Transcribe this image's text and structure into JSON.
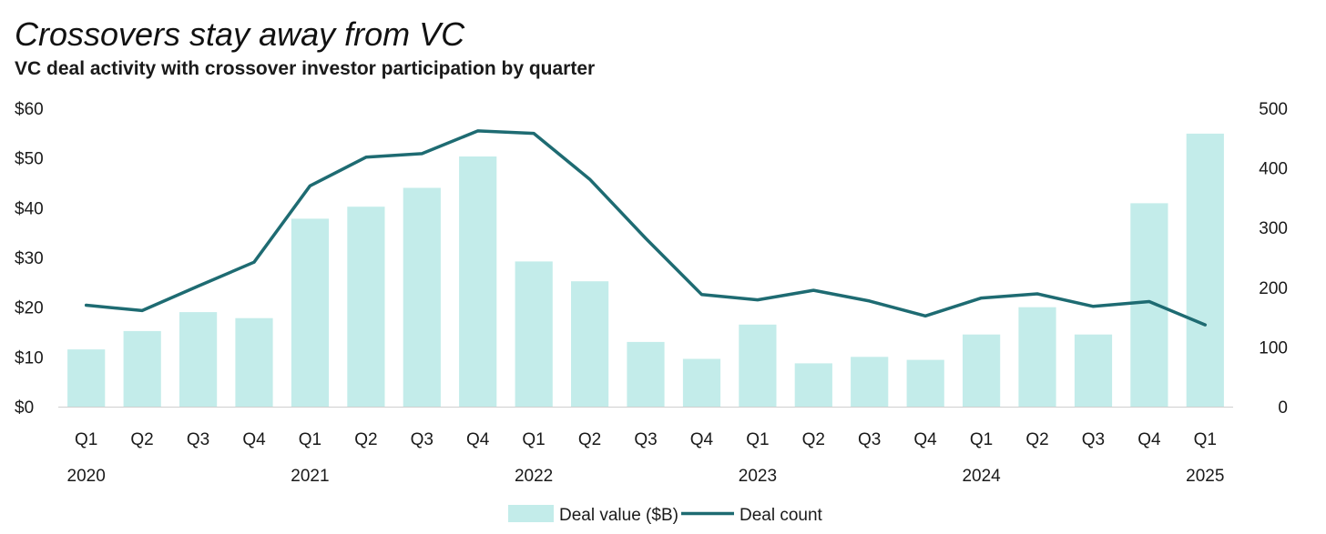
{
  "header": {
    "title": "Crossovers stay away from VC",
    "subtitle": "VC deal activity with crossover investor participation by quarter"
  },
  "colors": {
    "bar": "#c3ecea",
    "line": "#1e6b72",
    "axis": "#cfcfcf",
    "text": "#1a1a1a"
  },
  "chart_data": {
    "type": "bar",
    "title": "Crossovers stay away from VC",
    "subtitle": "VC deal activity with crossover investor participation by quarter",
    "categories": [
      "Q1",
      "Q2",
      "Q3",
      "Q4",
      "Q1",
      "Q2",
      "Q3",
      "Q4",
      "Q1",
      "Q2",
      "Q3",
      "Q4",
      "Q1",
      "Q2",
      "Q3",
      "Q4",
      "Q1",
      "Q2",
      "Q3",
      "Q4",
      "Q1"
    ],
    "years": [
      {
        "label": "2020",
        "start_index": 0
      },
      {
        "label": "2021",
        "start_index": 4
      },
      {
        "label": "2022",
        "start_index": 8
      },
      {
        "label": "2023",
        "start_index": 12
      },
      {
        "label": "2024",
        "start_index": 16
      },
      {
        "label": "2025",
        "start_index": 20
      }
    ],
    "series": [
      {
        "name": "Deal value ($B)",
        "type": "bar",
        "axis": "left",
        "values": [
          11.5,
          15.2,
          19.0,
          17.8,
          37.8,
          40.2,
          44.0,
          50.3,
          29.2,
          25.2,
          13.0,
          9.6,
          16.5,
          8.7,
          10.0,
          9.4,
          14.5,
          20.0,
          14.5,
          40.9,
          54.9
        ]
      },
      {
        "name": "Deal count",
        "type": "line",
        "axis": "right",
        "values": [
          170,
          161,
          202,
          242,
          370,
          418,
          424,
          462,
          458,
          381,
          282,
          188,
          179,
          195,
          177,
          152,
          182,
          189,
          168,
          176,
          137
        ]
      }
    ],
    "y_left": {
      "range": [
        0,
        60
      ],
      "ticks": [
        0,
        10,
        20,
        30,
        40,
        50,
        60
      ],
      "tick_labels": [
        "$0",
        "$10",
        "$20",
        "$30",
        "$40",
        "$50",
        "$60"
      ]
    },
    "y_right": {
      "range": [
        0,
        500
      ],
      "ticks": [
        0,
        100,
        200,
        300,
        400,
        500
      ],
      "tick_labels": [
        "0",
        "100",
        "200",
        "300",
        "400",
        "500"
      ]
    },
    "grid": false,
    "legend_position": "bottom-center"
  }
}
